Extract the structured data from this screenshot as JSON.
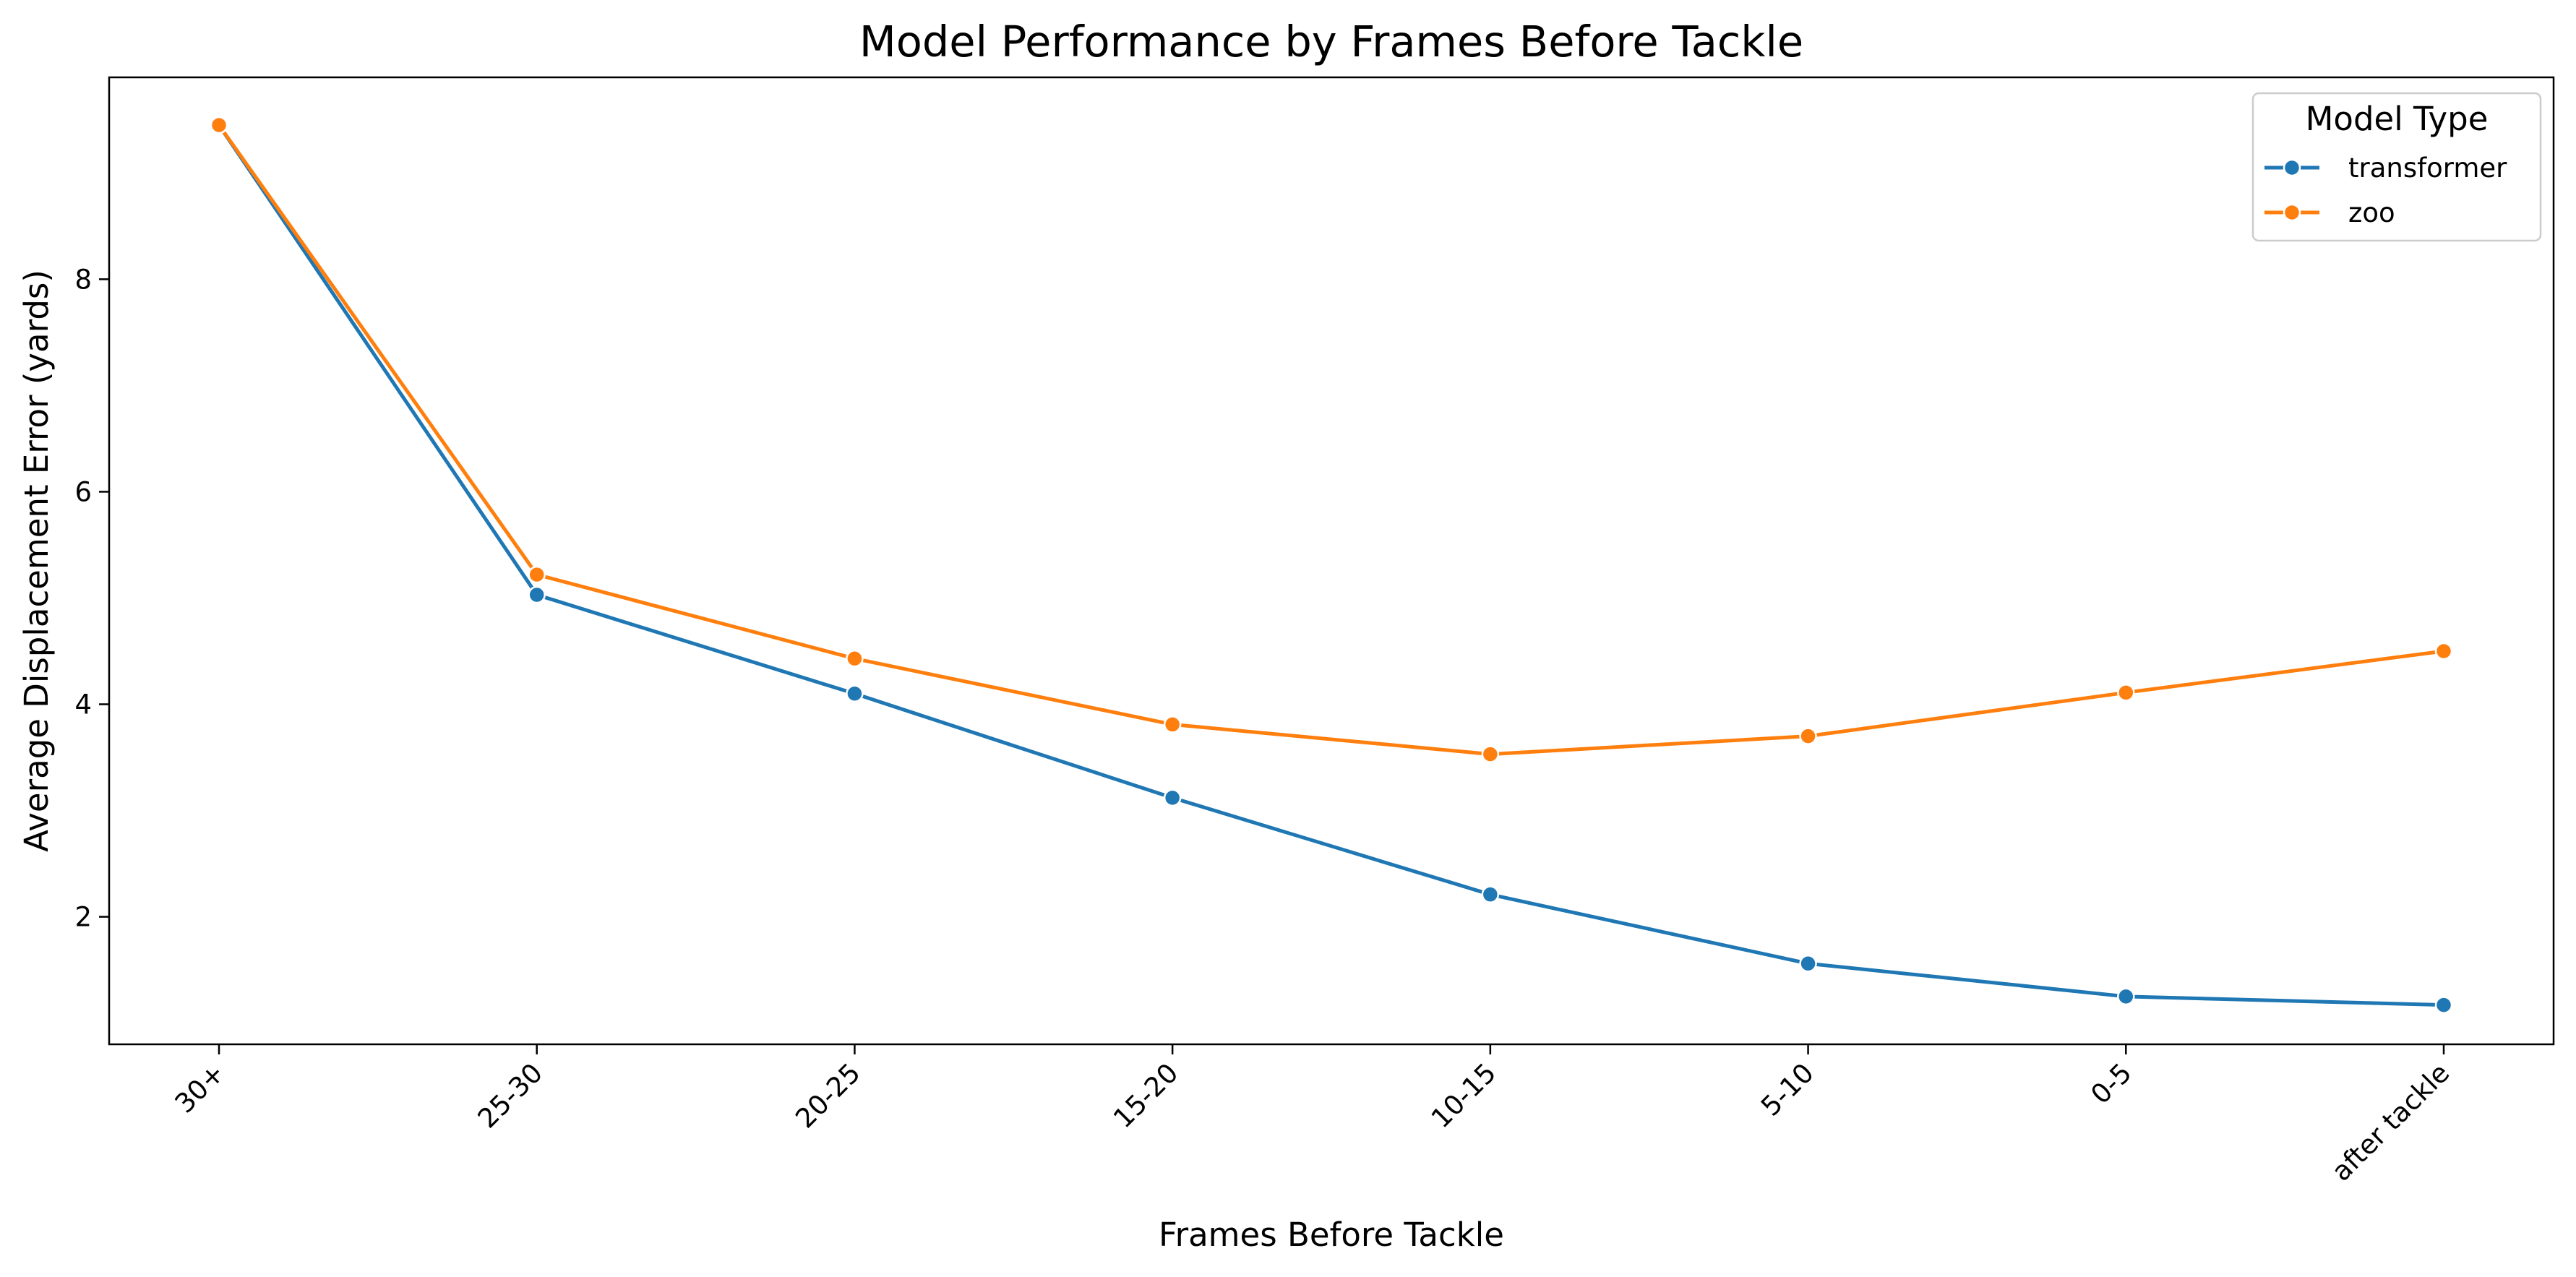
{
  "chart_data": {
    "type": "line",
    "title": "Model Performance by Frames Before Tackle",
    "xlabel": "Frames Before Tackle",
    "ylabel": "Average Displacement Error (yards)",
    "categories": [
      "30+",
      "25-30",
      "20-25",
      "15-20",
      "10-15",
      "5-10",
      "0-5",
      "after tackle"
    ],
    "yticks": [
      2,
      4,
      6,
      8
    ],
    "ylim": [
      0.8,
      9.9
    ],
    "grid": false,
    "legend": {
      "title": "Model Type",
      "placement": "top-right"
    },
    "series": [
      {
        "name": "transformer",
        "color": "#1f77b4",
        "values": [
          9.45,
          5.03,
          4.1,
          3.12,
          2.21,
          1.56,
          1.25,
          1.17
        ]
      },
      {
        "name": "zoo",
        "color": "#ff7f0e",
        "values": [
          9.45,
          5.22,
          4.43,
          3.81,
          3.53,
          3.7,
          4.11,
          4.5
        ]
      }
    ]
  }
}
